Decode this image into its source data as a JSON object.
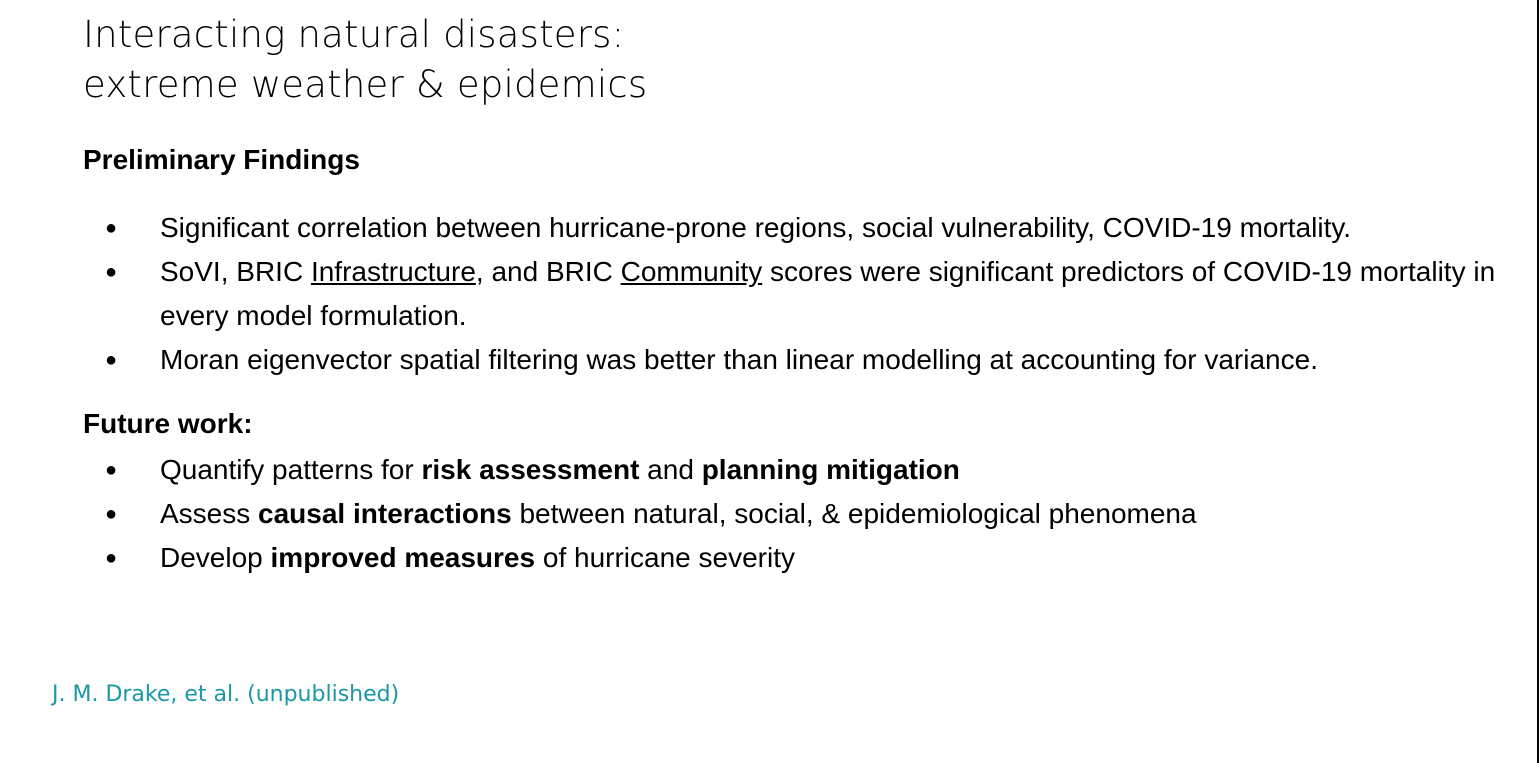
{
  "title": {
    "line1": "Interacting natural disasters:",
    "line2": "extreme weather & epidemics"
  },
  "findings": {
    "heading": "Preliminary Findings",
    "items": [
      {
        "text": "Significant correlation between hurricane-prone regions, social vulnerability, COVID-19 mortality."
      },
      {
        "part1": "SoVI, BRIC ",
        "u1": "Infrastructure",
        "part2": ", and BRIC ",
        "u2": "Community",
        "part3": " scores were significant predictors of COVID-19 mortality in every model formulation."
      },
      {
        "text": "Moran eigenvector spatial filtering was better than linear modelling at accounting for variance."
      }
    ]
  },
  "future": {
    "heading": "Future work:",
    "items": [
      {
        "pre": "Quantify patterns for ",
        "b1": "risk assessment",
        "mid": " and ",
        "b2": "planning mitigation"
      },
      {
        "pre": "Assess ",
        "b1": "causal interactions",
        "post": " between natural, social, & epidemiological phenomena"
      },
      {
        "pre": "Develop ",
        "b1": "improved measures",
        "post": " of hurricane severity"
      }
    ]
  },
  "bullet_char": "●",
  "citation": "J. M. Drake, et al. (unpublished)",
  "colors": {
    "citation": "#1a98a6",
    "text": "#000000",
    "background": "#ffffff"
  }
}
